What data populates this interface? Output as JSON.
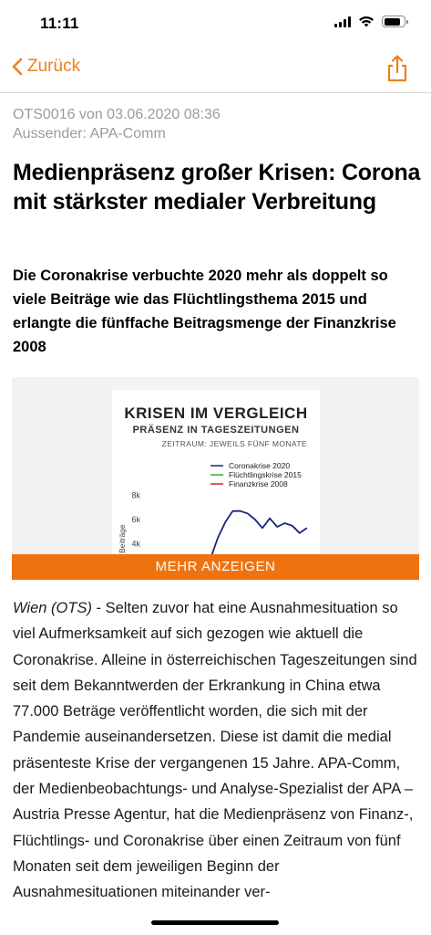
{
  "status_bar": {
    "time": "11:11",
    "battery_level": 0.85
  },
  "nav": {
    "back_label": "Zurück",
    "accent_color": "#ee7f1a"
  },
  "article": {
    "meta_line1": "OTS0016 von 03.06.2020 08:36",
    "meta_line2": "Aussender: APA-Comm",
    "headline": "Medienpräsenz großer Krisen: Corona mit stärkster medialer Verbreitung",
    "lead": "Die Coronakrise verbuchte 2020 mehr als doppelt so viele Beiträge wie das Flüchtlingsthema 2015 und erlangte die fünffache Beitragsmenge der Finanzkrise 2008",
    "location": "Wien (OTS)",
    "body": " - Selten zuvor hat eine Ausnahmesituation so viel Aufmerksamkeit auf sich gezogen wie aktuell die Coronakrise. Alleine in österreichischen Tageszeitungen sind seit dem Bekanntwerden der Erkrankung in China etwa 77.000 Beträge veröffentlicht worden, die sich mit der Pandemie auseinandersetzen. Diese ist damit die medial präsenteste Krise der vergangenen 15 Jahre. APA-Comm, der Medienbeobachtungs- und Analyse-Spezialist der APA – Austria Presse Agentur, hat die Medienpräsenz von Finanz-, Flüchtlings- und Coronakrise über einen Zeitraum von fünf Monaten seit dem jeweiligen Beginn der Ausnahmesituationen miteinander ver-"
  },
  "figure": {
    "more_label": "MEHR ANZEIGEN",
    "more_color": "#ee7310"
  },
  "chart_data": {
    "type": "line",
    "title": "KRISEN IM VERGLEICH",
    "subtitle": "PRÄSENZ IN TAGESZEITUNGEN",
    "note": "ZEITRAUM: JEWEILS FÜNF MONATE",
    "ylabel": "hl Beiträge",
    "yticks": [
      "8k",
      "6k",
      "4k"
    ],
    "ylim": [
      3000,
      9000
    ],
    "legend_position": "top-right",
    "series": [
      {
        "name": "Coronakrise 2020",
        "color": "#1a237e",
        "x": [
          1,
          2,
          3,
          4,
          5,
          6,
          7,
          8,
          9,
          10,
          11,
          12,
          13,
          14,
          15
        ],
        "values": [
          2800,
          4500,
          5800,
          6700,
          6700,
          6500,
          6000,
          5300,
          6100,
          5400,
          5700,
          5500,
          4900,
          5300,
          null
        ]
      },
      {
        "name": "Flüchtlingskrise 2015",
        "color": "#3aa335",
        "x": [],
        "values": []
      },
      {
        "name": "Finanzkrise 2008",
        "color": "#d3202a",
        "x": [],
        "values": []
      }
    ]
  }
}
